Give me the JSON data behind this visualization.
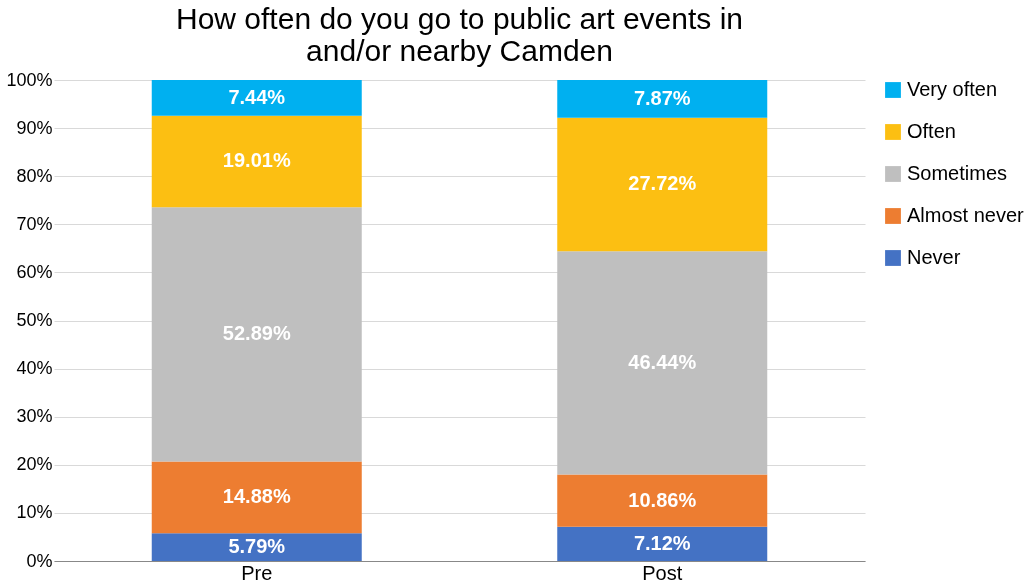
{
  "chart_data": {
    "type": "bar",
    "stacked": true,
    "title": "How often do you go to public art events in\nand/or nearby Camden",
    "categories": [
      "Pre",
      "Post"
    ],
    "series": [
      {
        "name": "Never",
        "color": "#4472c4",
        "values": [
          5.79,
          7.12
        ],
        "value_labels": [
          "5.79%",
          "7.12%"
        ]
      },
      {
        "name": "Almost never",
        "color": "#ed7d31",
        "values": [
          14.88,
          10.86
        ],
        "value_labels": [
          "14.88%",
          "10.86%"
        ]
      },
      {
        "name": "Sometimes",
        "color": "#bfbfbf",
        "values": [
          52.89,
          46.44
        ],
        "value_labels": [
          "52.89%",
          "46.44%"
        ]
      },
      {
        "name": "Often",
        "color": "#fcbf12",
        "values": [
          19.01,
          27.72
        ],
        "value_labels": [
          "19.01%",
          "27.72%"
        ]
      },
      {
        "name": "Very often",
        "color": "#00b0f0",
        "values": [
          7.44,
          7.87
        ],
        "value_labels": [
          "7.44%",
          "7.87%"
        ]
      }
    ],
    "ylim": [
      0,
      100
    ],
    "yticks": [
      {
        "value": 0,
        "label": "0%"
      },
      {
        "value": 10,
        "label": "10%"
      },
      {
        "value": 20,
        "label": "20%"
      },
      {
        "value": 30,
        "label": "30%"
      },
      {
        "value": 40,
        "label": "40%"
      },
      {
        "value": 50,
        "label": "50%"
      },
      {
        "value": 60,
        "label": "60%"
      },
      {
        "value": 70,
        "label": "70%"
      },
      {
        "value": 80,
        "label": "80%"
      },
      {
        "value": 90,
        "label": "90%"
      },
      {
        "value": 100,
        "label": "100%"
      }
    ],
    "grid": "y",
    "legend": "right"
  }
}
